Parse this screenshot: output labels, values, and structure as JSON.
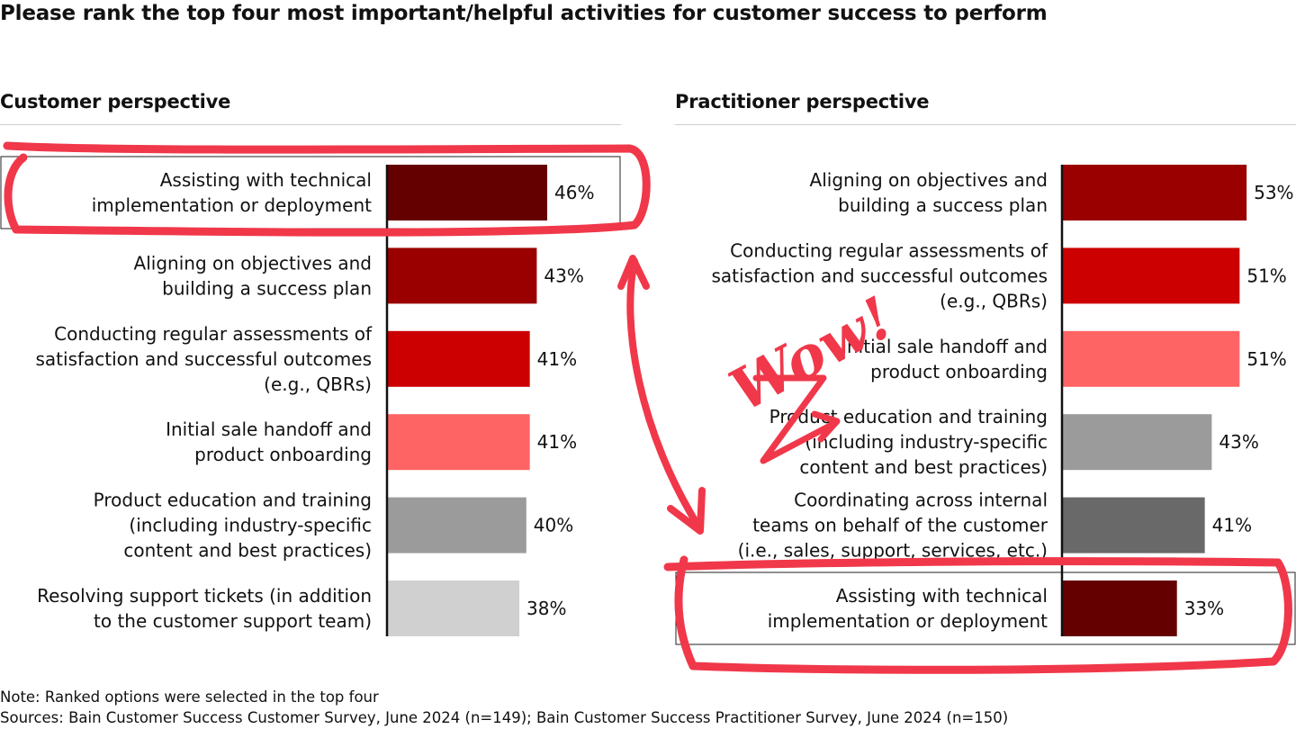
{
  "title": "Please rank the top four most important/helpful activities for customer success to perform",
  "annotation_text": "Wow!",
  "colors": {
    "dark_maroon": "#650000",
    "maroon": "#9a0000",
    "red": "#cc0000",
    "salmon": "#ff6464",
    "gray": "#9b9b9b",
    "dark_gray": "#696969",
    "light_gray": "#d0d0d0",
    "annotation": "#f0384a"
  },
  "chart_data": [
    {
      "type": "bar",
      "orientation": "horizontal",
      "title": "Customer perspective",
      "categories": [
        [
          "Assisting with technical",
          "implementation or deployment"
        ],
        [
          "Aligning on objectives and",
          "building a success plan"
        ],
        [
          "Conducting regular assessments of",
          "satisfaction and successful outcomes",
          "(e.g., QBRs)"
        ],
        [
          "Initial sale handoff and",
          "product onboarding"
        ],
        [
          "Product education and training",
          "(including industry-specific",
          "content and best practices)"
        ],
        [
          "Resolving support tickets (in addition",
          "to the customer support team)"
        ]
      ],
      "values": [
        46,
        43,
        41,
        41,
        40,
        38
      ],
      "value_labels": [
        "46%",
        "43%",
        "41%",
        "41%",
        "40%",
        "38%"
      ],
      "colors": [
        "#650000",
        "#9a0000",
        "#cc0000",
        "#ff6464",
        "#9b9b9b",
        "#d0d0d0"
      ],
      "highlighted": [
        0
      ]
    },
    {
      "type": "bar",
      "orientation": "horizontal",
      "title": "Practitioner perspective",
      "categories": [
        [
          "Aligning on objectives and",
          "building a success plan"
        ],
        [
          "Conducting regular assessments of",
          "satisfaction and successful outcomes",
          "(e.g., QBRs)"
        ],
        [
          "Initial sale handoff and",
          "product onboarding"
        ],
        [
          "Product education and training",
          "(including industry-specific",
          "content and best practices)"
        ],
        [
          "Coordinating across internal",
          "teams on behalf of the customer",
          "(i.e., sales, support, services, etc.)"
        ],
        [
          "Assisting with technical",
          "implementation or deployment"
        ]
      ],
      "values": [
        53,
        51,
        51,
        43,
        41,
        33
      ],
      "value_labels": [
        "53%",
        "51%",
        "51%",
        "43%",
        "41%",
        "33%"
      ],
      "colors": [
        "#9a0000",
        "#cc0000",
        "#ff6464",
        "#9b9b9b",
        "#696969",
        "#650000"
      ],
      "highlighted": [
        5
      ]
    }
  ],
  "footer": {
    "note": "Note: Ranked options were selected in the top four",
    "sources": "Sources: Bain Customer Success Customer Survey, June 2024 (n=149); Bain Customer Success Practitioner Survey, June 2024 (n=150)"
  }
}
